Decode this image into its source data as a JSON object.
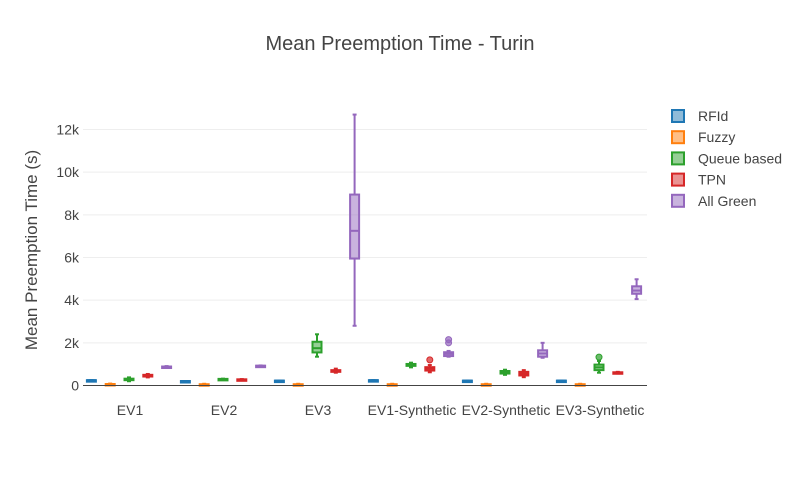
{
  "chart_data": {
    "type": "box",
    "title": "Mean Preemption Time - Turin",
    "xlabel": "",
    "ylabel": "Mean Preemption Time (s)",
    "ylim": [
      -300,
      14000
    ],
    "yticks": [
      0,
      2000,
      4000,
      6000,
      8000,
      10000,
      12000
    ],
    "ytick_labels": [
      "0",
      "2k",
      "4k",
      "6k",
      "8k",
      "10k",
      "12k"
    ],
    "grid": true,
    "legend_position": "right",
    "categories": [
      "EV1",
      "EV2",
      "EV3",
      "EV1-Synthetic",
      "EV2-Synthetic",
      "EV3-Synthetic"
    ],
    "series": [
      {
        "name": "RFId",
        "color": "#1f77b4",
        "boxes": [
          {
            "min": 250,
            "q1": 250,
            "median": 250,
            "q3": 250,
            "max": 250,
            "outliers": []
          },
          {
            "min": 210,
            "q1": 210,
            "median": 210,
            "q3": 210,
            "max": 210,
            "outliers": []
          },
          {
            "min": 230,
            "q1": 230,
            "median": 230,
            "q3": 230,
            "max": 230,
            "outliers": []
          },
          {
            "min": 250,
            "q1": 250,
            "median": 250,
            "q3": 250,
            "max": 250,
            "outliers": []
          },
          {
            "min": 230,
            "q1": 230,
            "median": 230,
            "q3": 230,
            "max": 230,
            "outliers": []
          },
          {
            "min": 230,
            "q1": 230,
            "median": 230,
            "q3": 230,
            "max": 230,
            "outliers": []
          }
        ]
      },
      {
        "name": "Fuzzy",
        "color": "#ff7f0e",
        "boxes": [
          {
            "min": 20,
            "q1": 30,
            "median": 50,
            "q3": 70,
            "max": 90,
            "outliers": []
          },
          {
            "min": 10,
            "q1": 20,
            "median": 40,
            "q3": 60,
            "max": 80,
            "outliers": []
          },
          {
            "min": 10,
            "q1": 20,
            "median": 40,
            "q3": 60,
            "max": 80,
            "outliers": []
          },
          {
            "min": 10,
            "q1": 20,
            "median": 40,
            "q3": 60,
            "max": 80,
            "outliers": []
          },
          {
            "min": 10,
            "q1": 20,
            "median": 40,
            "q3": 60,
            "max": 80,
            "outliers": []
          },
          {
            "min": 10,
            "q1": 20,
            "median": 40,
            "q3": 60,
            "max": 80,
            "outliers": []
          }
        ]
      },
      {
        "name": "Queue based",
        "color": "#2ca02c",
        "boxes": [
          {
            "min": 200,
            "q1": 260,
            "median": 290,
            "q3": 320,
            "max": 380,
            "outliers": []
          },
          {
            "min": 280,
            "q1": 290,
            "median": 300,
            "q3": 310,
            "max": 320,
            "outliers": []
          },
          {
            "min": 1350,
            "q1": 1550,
            "median": 1750,
            "q3": 2050,
            "max": 2400,
            "outliers": []
          },
          {
            "min": 850,
            "q1": 920,
            "median": 960,
            "q3": 1010,
            "max": 1070,
            "outliers": []
          },
          {
            "min": 500,
            "q1": 560,
            "median": 620,
            "q3": 680,
            "max": 740,
            "outliers": []
          },
          {
            "min": 600,
            "q1": 720,
            "median": 850,
            "q3": 980,
            "max": 1150,
            "outliers": [
              1330
            ]
          }
        ]
      },
      {
        "name": "TPN",
        "color": "#d62728",
        "boxes": [
          {
            "min": 380,
            "q1": 420,
            "median": 460,
            "q3": 500,
            "max": 540,
            "outliers": []
          },
          {
            "min": 260,
            "q1": 270,
            "median": 280,
            "q3": 290,
            "max": 300,
            "outliers": []
          },
          {
            "min": 600,
            "q1": 640,
            "median": 680,
            "q3": 720,
            "max": 790,
            "outliers": []
          },
          {
            "min": 620,
            "q1": 700,
            "median": 790,
            "q3": 860,
            "max": 960,
            "outliers": [
              1200
            ]
          },
          {
            "min": 390,
            "q1": 470,
            "median": 560,
            "q3": 640,
            "max": 720,
            "outliers": []
          },
          {
            "min": 560,
            "q1": 580,
            "median": 600,
            "q3": 620,
            "max": 640,
            "outliers": []
          }
        ]
      },
      {
        "name": "All Green",
        "color": "#9467bd",
        "boxes": [
          {
            "min": 830,
            "q1": 850,
            "median": 870,
            "q3": 890,
            "max": 910,
            "outliers": []
          },
          {
            "min": 900,
            "q1": 910,
            "median": 920,
            "q3": 930,
            "max": 940,
            "outliers": []
          },
          {
            "min": 2800,
            "q1": 5950,
            "median": 7250,
            "q3": 8950,
            "max": 12700,
            "outliers": []
          },
          {
            "min": 1350,
            "q1": 1380,
            "median": 1480,
            "q3": 1560,
            "max": 1620,
            "outliers": [
              2000,
              2150
            ]
          },
          {
            "min": 1300,
            "q1": 1350,
            "median": 1500,
            "q3": 1650,
            "max": 2000,
            "outliers": []
          },
          {
            "min": 4050,
            "q1": 4300,
            "median": 4450,
            "q3": 4650,
            "max": 4980,
            "outliers": []
          }
        ]
      }
    ]
  }
}
